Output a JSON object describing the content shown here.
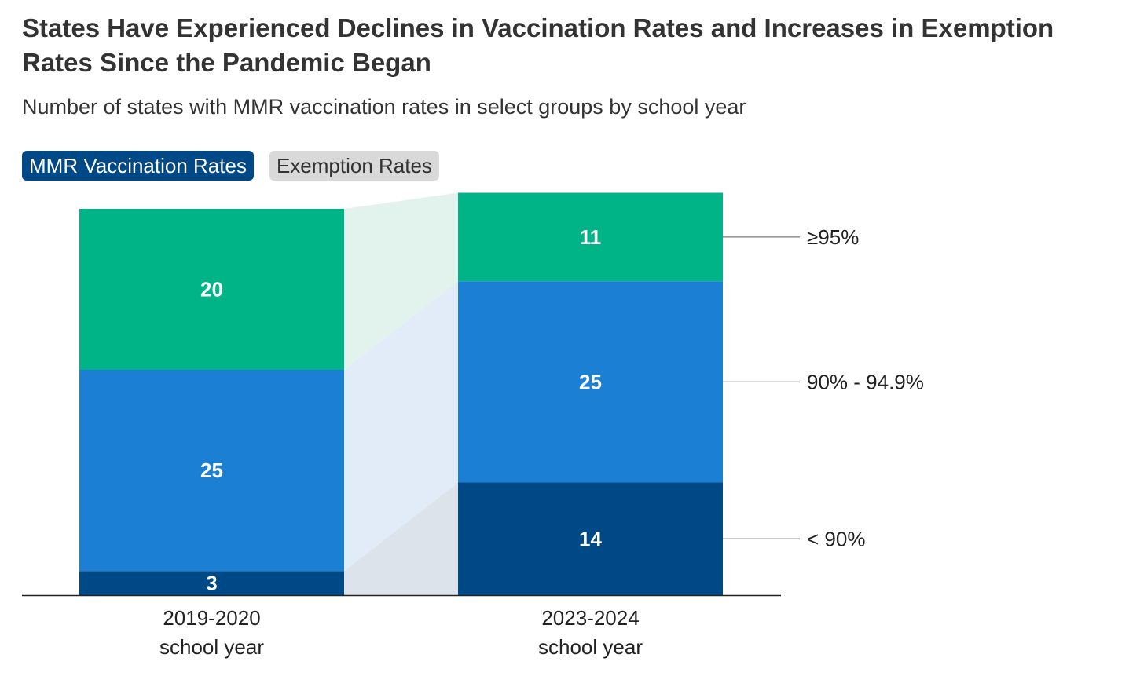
{
  "header": {
    "title": "States Have Experienced Declines in Vaccination Rates and Increases in Exemption Rates Since the Pandemic Began",
    "subtitle": "Number of states with MMR vaccination rates in select groups by school year"
  },
  "tabs": [
    {
      "label": "MMR Vaccination Rates",
      "active": true
    },
    {
      "label": "Exemption Rates",
      "active": false
    }
  ],
  "colors": {
    "low": "#004987",
    "mid": "#1b7fd4",
    "high": "#00b488",
    "band_low": "#dde3ea",
    "band_mid": "#e1ecf8",
    "band_high": "#e1f3ec"
  },
  "chart_data": {
    "type": "bar",
    "stacked": true,
    "categories": [
      {
        "line1": "2019-2020",
        "line2": "school year"
      },
      {
        "line1": "2023-2024",
        "line2": "school year"
      }
    ],
    "series": [
      {
        "name": "< 90%",
        "key": "low",
        "values": [
          3,
          14
        ]
      },
      {
        "name": "90% - 94.9%",
        "key": "mid",
        "values": [
          25,
          25
        ]
      },
      {
        "name": "≥95%",
        "key": "high",
        "values": [
          20,
          11
        ]
      }
    ],
    "ylim": [
      0,
      50
    ],
    "legend_placement": "right"
  }
}
